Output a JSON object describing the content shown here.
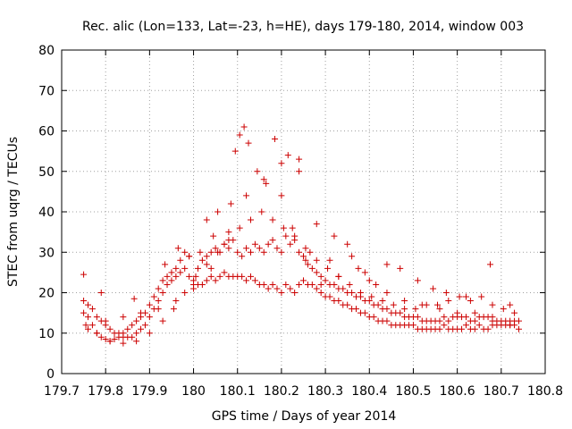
{
  "chart_data": {
    "type": "scatter",
    "title": "Rec. alic (Lon=133, Lat=-23, h=HE), days 179-180, 2014, window 003",
    "xlabel": "GPS time / Days of year 2014",
    "ylabel": "STEC from uqrg / TECUs",
    "xlim": [
      179.7,
      180.8
    ],
    "ylim": [
      0,
      80
    ],
    "xticks": [
      "179.7",
      "179.8",
      "179.9",
      "180",
      "180.1",
      "180.2",
      "180.3",
      "180.4",
      "180.5",
      "180.6",
      "180.7",
      "180.8"
    ],
    "yticks": [
      "0",
      "10",
      "20",
      "30",
      "40",
      "50",
      "60",
      "70",
      "80"
    ],
    "grid": true,
    "marker": "plus",
    "color": "#cc0000",
    "x": [
      179.75,
      179.76,
      179.77,
      179.78,
      179.79,
      179.8,
      179.81,
      179.82,
      179.83,
      179.84,
      179.85,
      179.86,
      179.87,
      179.88,
      179.89,
      179.9,
      179.91,
      179.92,
      179.93,
      179.94,
      179.95,
      179.96,
      179.97,
      179.98,
      179.99,
      180.0,
      180.01,
      180.02,
      180.03,
      180.04,
      180.05,
      180.06,
      180.07,
      180.08,
      180.09,
      180.1,
      180.11,
      180.12,
      180.13,
      180.14,
      180.15,
      180.16,
      180.17,
      180.18,
      180.19,
      180.2,
      180.21,
      180.22,
      180.23,
      180.24,
      180.25,
      180.26,
      180.27,
      180.28,
      180.29,
      180.3,
      180.31,
      180.32,
      180.33,
      180.34,
      180.35,
      180.36,
      180.37,
      180.38,
      180.39,
      180.4,
      180.41,
      180.42,
      180.43,
      180.44,
      180.45,
      180.46,
      180.47,
      180.48,
      180.49,
      180.5,
      180.51,
      180.52,
      180.53,
      180.54,
      180.55,
      180.56,
      180.57,
      180.58,
      180.59,
      180.6,
      180.61,
      180.62,
      180.63,
      180.64,
      180.65,
      180.66,
      180.67,
      180.68,
      180.69,
      180.7,
      180.71,
      180.72,
      180.73,
      180.74,
      179.75,
      179.76,
      179.77,
      179.78,
      179.79,
      179.8,
      179.81,
      179.82,
      179.83,
      179.84,
      179.85,
      179.86,
      179.87,
      179.88,
      179.89,
      179.9,
      179.91,
      179.92,
      179.93,
      179.94,
      179.95,
      179.96,
      179.97,
      179.98,
      179.99,
      180.0,
      180.01,
      180.02,
      180.03,
      180.04,
      180.05,
      180.06,
      180.07,
      180.08,
      180.09,
      180.1,
      180.11,
      180.12,
      180.13,
      180.14,
      180.15,
      180.16,
      180.17,
      180.18,
      180.19,
      180.2,
      180.21,
      180.22,
      180.23,
      180.24,
      180.25,
      180.26,
      180.27,
      180.28,
      180.29,
      180.3,
      180.31,
      180.32,
      180.33,
      180.34,
      180.35,
      180.36,
      180.37,
      180.38,
      180.39,
      180.4,
      180.41,
      180.42,
      180.43,
      180.44,
      180.45,
      180.46,
      180.47,
      180.48,
      180.49,
      180.5,
      180.51,
      180.52,
      180.53,
      180.54,
      180.55,
      180.56,
      180.57,
      180.58,
      180.59,
      180.6,
      180.61,
      180.62,
      180.63,
      180.64,
      180.65,
      180.66,
      180.67,
      180.68,
      180.69,
      180.7,
      180.71,
      180.72,
      180.73,
      180.74,
      179.755,
      179.78,
      179.81,
      179.84,
      179.87,
      179.9,
      179.93,
      179.955,
      179.98,
      180.005,
      180.03,
      180.055,
      180.08,
      180.105,
      180.13,
      180.155,
      180.18,
      180.205,
      180.23,
      180.255,
      180.28,
      180.305,
      180.33,
      180.355,
      180.38,
      180.405,
      180.43,
      180.455,
      180.48,
      180.505,
      180.53,
      180.555,
      180.58,
      180.605,
      180.63,
      180.655,
      180.68,
      180.705,
      180.73,
      179.76,
      179.8,
      179.84,
      179.88,
      179.92,
      179.96,
      180.0,
      180.04,
      180.08,
      180.12,
      180.16,
      180.2,
      180.24,
      180.28,
      180.32,
      180.36,
      180.4,
      180.44,
      180.48,
      180.52,
      180.56,
      180.6,
      180.64,
      180.68,
      180.72,
      179.75,
      179.79,
      179.865,
      179.935,
      179.965,
      179.99,
      180.015,
      180.03,
      180.045,
      180.055,
      180.07,
      180.085,
      180.095,
      180.105,
      180.115,
      180.125,
      180.145,
      180.165,
      180.185,
      180.2,
      180.215,
      180.225,
      180.24,
      180.255,
      180.265,
      180.29,
      180.31,
      180.33,
      180.35,
      180.375,
      180.39,
      180.415,
      180.44,
      180.47,
      180.51,
      180.545,
      180.575,
      180.62,
      180.675,
      180.72
    ],
    "y": [
      15,
      14,
      12,
      10,
      9,
      8.5,
      8,
      8.5,
      9,
      10,
      11,
      12,
      13,
      14,
      15,
      17,
      19,
      21,
      23,
      24,
      25,
      24,
      25,
      26,
      24,
      23,
      22,
      22,
      23,
      24,
      23,
      24,
      25,
      24,
      24,
      24,
      24,
      23,
      24,
      23,
      22,
      22,
      21,
      22,
      21,
      20,
      22,
      21,
      20,
      22,
      23,
      22,
      22,
      21,
      20,
      19,
      19,
      18,
      18,
      17,
      17,
      16,
      16,
      15,
      15,
      14,
      14,
      13,
      13,
      13,
      12,
      12,
      12,
      12,
      12,
      12,
      11,
      11,
      11,
      11,
      11,
      11,
      12,
      11,
      11,
      11,
      11,
      12,
      11,
      11,
      12,
      11,
      11,
      12,
      12,
      12,
      12,
      12,
      12,
      11,
      18,
      17,
      16,
      14,
      13,
      12,
      11,
      10,
      10,
      9,
      9,
      9,
      10,
      11,
      12,
      14,
      16,
      18,
      20,
      22,
      23,
      26,
      28,
      30,
      29,
      22,
      26,
      28,
      29,
      30,
      31,
      30,
      32,
      31,
      33,
      30,
      29,
      31,
      30,
      32,
      31,
      30,
      32,
      33,
      31,
      30,
      34,
      32,
      33,
      30,
      29,
      27,
      26,
      25,
      24,
      23,
      22,
      22,
      21,
      21,
      20,
      20,
      19,
      19,
      18,
      18,
      17,
      17,
      16,
      16,
      15,
      15,
      15,
      14,
      14,
      14,
      14,
      13,
      13,
      13,
      13,
      13,
      14,
      13,
      14,
      14,
      14,
      14,
      13,
      13,
      14,
      14,
      14,
      13,
      13,
      13,
      13,
      13,
      13,
      13,
      12,
      10,
      8,
      7.5,
      8,
      10,
      13,
      16,
      20,
      24,
      27,
      30,
      33,
      36,
      38,
      40,
      38,
      36,
      34,
      31,
      28,
      26,
      24,
      22,
      20,
      19,
      18,
      17,
      16,
      16,
      17,
      17,
      18,
      19,
      18,
      19,
      17,
      16,
      15,
      11,
      13,
      14,
      15,
      16,
      18,
      21,
      26,
      35,
      44,
      48,
      52,
      50,
      37,
      34,
      29,
      23,
      20,
      18,
      17,
      16,
      15,
      15,
      14,
      12,
      24.5,
      20,
      18.5,
      27,
      31,
      29,
      30,
      38,
      34,
      40,
      32,
      42,
      55,
      59,
      61,
      57,
      50,
      47,
      58,
      44,
      54,
      36,
      53,
      28,
      30,
      22,
      28,
      24,
      32,
      26,
      25,
      22,
      27,
      26,
      23,
      21,
      20,
      19,
      27,
      17
    ]
  }
}
